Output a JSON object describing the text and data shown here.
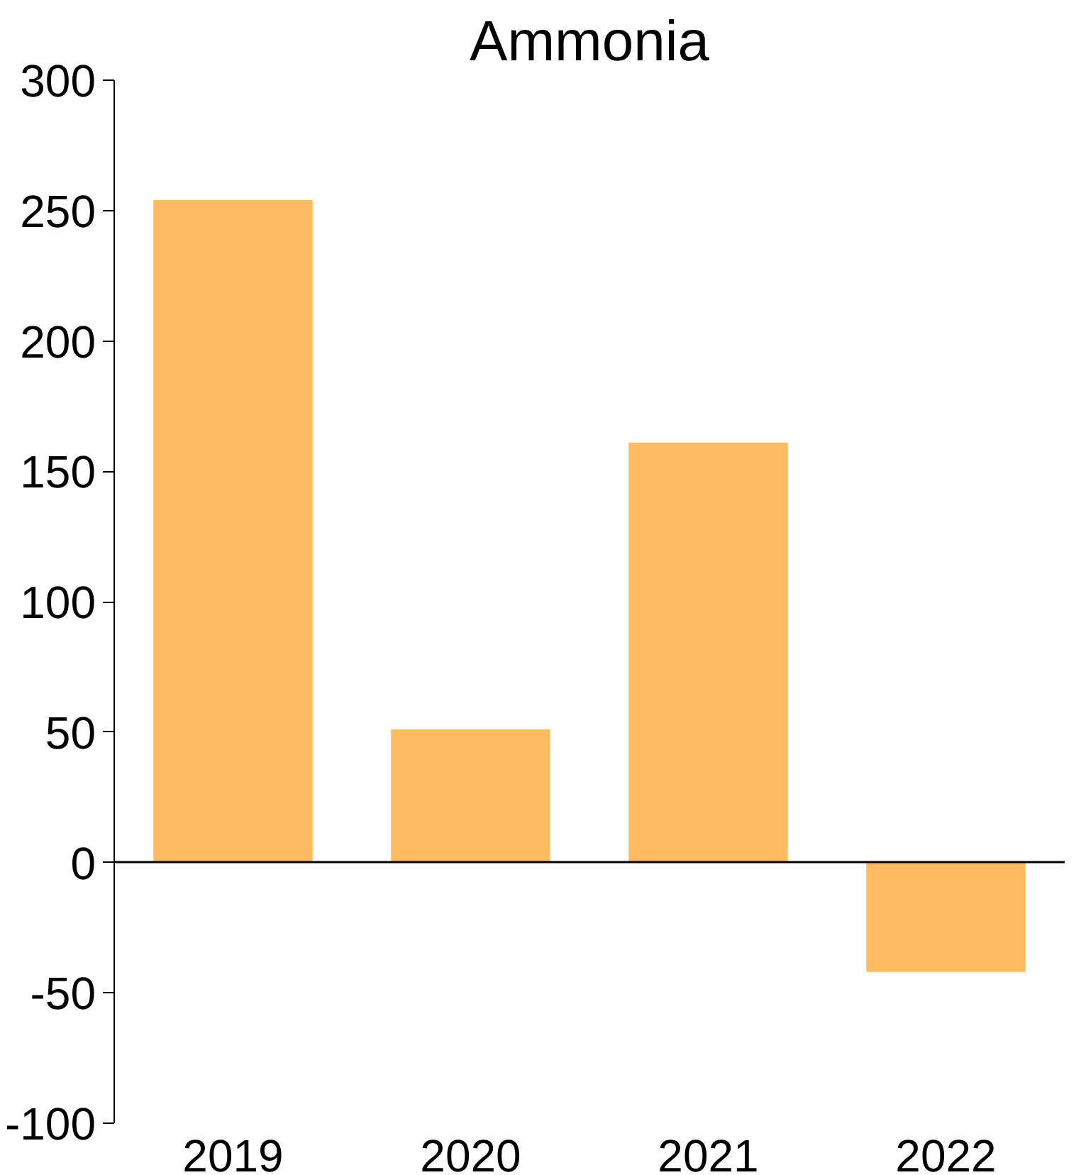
{
  "chart_data": {
    "type": "bar",
    "title": "Ammonia",
    "categories": [
      "2019",
      "2020",
      "2021",
      "2022"
    ],
    "values": [
      254,
      51,
      161,
      -42
    ],
    "color": "#ffbb5f",
    "ylim": [
      -100,
      300
    ],
    "yticks": [
      -100,
      -50,
      0,
      50,
      100,
      150,
      200,
      250,
      300
    ]
  }
}
